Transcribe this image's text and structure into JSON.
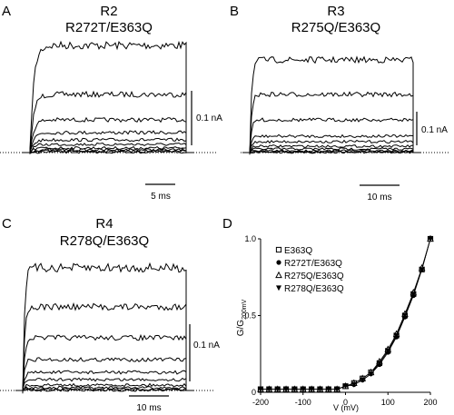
{
  "panels": [
    {
      "letter": "A",
      "title1": "R2",
      "title2": "R272T/E363Q",
      "current_scale": "0.1 nA",
      "time_scale": "5 ms"
    },
    {
      "letter": "B",
      "title1": "R3",
      "title2": "R275Q/E363Q",
      "current_scale": "0.1 nA",
      "time_scale": "10 ms"
    },
    {
      "letter": "C",
      "title1": "R4",
      "title2": "R278Q/E363Q",
      "current_scale": "0.1 nA",
      "time_scale": "10 ms"
    },
    {
      "letter": "D"
    }
  ],
  "chart_data": {
    "type": "scatter",
    "ylabel_main": "G/G",
    "ylabel_sub": "200mV",
    "xlabel": "V (mV)",
    "xlim": [
      -200,
      200
    ],
    "ylim": [
      0,
      1.0
    ],
    "xticks": [
      "-200",
      "-100",
      "0",
      "100",
      "200"
    ],
    "yticks": [
      "0",
      "0.5",
      "1.0"
    ],
    "x": [
      -200,
      -180,
      -160,
      -140,
      -120,
      -100,
      -80,
      -60,
      -40,
      -20,
      0,
      20,
      40,
      60,
      80,
      100,
      120,
      140,
      160,
      180,
      200
    ],
    "series": [
      {
        "name": "E363Q",
        "marker": "square-open",
        "values": [
          0.02,
          0.02,
          0.02,
          0.02,
          0.02,
          0.02,
          0.02,
          0.02,
          0.02,
          0.02,
          0.04,
          0.06,
          0.09,
          0.13,
          0.19,
          0.27,
          0.37,
          0.5,
          0.64,
          0.8,
          1.0
        ]
      },
      {
        "name": "R272T/E363Q",
        "marker": "circle-filled",
        "values": [
          0.02,
          0.02,
          0.02,
          0.02,
          0.02,
          0.02,
          0.02,
          0.02,
          0.02,
          0.02,
          0.04,
          0.05,
          0.08,
          0.12,
          0.18,
          0.26,
          0.36,
          0.49,
          0.63,
          0.8,
          1.0
        ]
      },
      {
        "name": "R275Q/E363Q",
        "marker": "triangle-open",
        "values": [
          0.02,
          0.02,
          0.02,
          0.02,
          0.02,
          0.02,
          0.02,
          0.02,
          0.02,
          0.02,
          0.04,
          0.06,
          0.09,
          0.13,
          0.2,
          0.28,
          0.38,
          0.51,
          0.65,
          0.81,
          1.0
        ]
      },
      {
        "name": "R278Q/E363Q",
        "marker": "triangle-down-filled",
        "values": [
          0.02,
          0.02,
          0.02,
          0.02,
          0.02,
          0.02,
          0.02,
          0.02,
          0.02,
          0.02,
          0.04,
          0.05,
          0.08,
          0.12,
          0.19,
          0.27,
          0.37,
          0.5,
          0.64,
          0.8,
          1.0
        ]
      }
    ]
  }
}
